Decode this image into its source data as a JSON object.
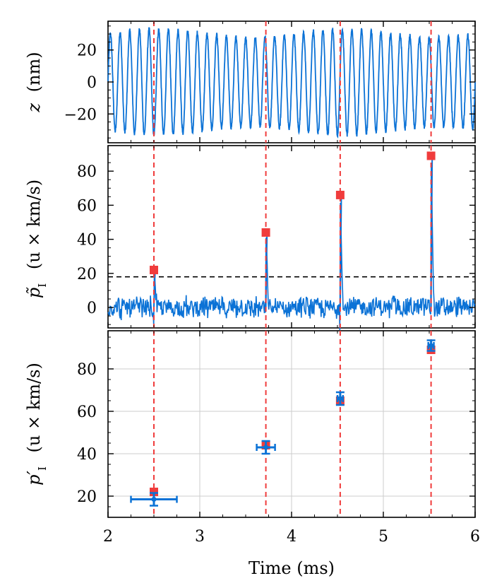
{
  "chart_data": [
    {
      "type": "line",
      "panel": "top",
      "ylabel": "z (nm)",
      "ylabel_parts": {
        "symbol": "z",
        "unit": "(nm)"
      },
      "xlim": [
        2,
        6
      ],
      "ylim": [
        -38,
        38
      ],
      "yticks": [
        -20,
        0,
        20
      ],
      "ytick_labels": [
        "−20",
        "0",
        "20"
      ],
      "series": [
        {
          "amplitude": 33,
          "frequency_khz": 9.5,
          "color": "#0b72d6"
        }
      ],
      "markers": {
        "times": [
          2.5,
          3.72,
          4.53,
          5.52
        ],
        "color": "#f03c3c",
        "style": "dashed"
      }
    },
    {
      "type": "line",
      "panel": "middle",
      "ylabel": "p̃_I (u × km/s)",
      "ylabel_parts": {
        "symbol": "p̃",
        "subscript": "I",
        "unit": "(u × km/s)"
      },
      "xlim": [
        2,
        6
      ],
      "ylim": [
        -12,
        95
      ],
      "yticks": [
        0,
        20,
        40,
        60,
        80
      ],
      "ytick_labels": [
        "0",
        "20",
        "40",
        "60",
        "80"
      ],
      "threshold": 18,
      "series": [
        {
          "noise_amplitude": 5,
          "color": "#0b72d6"
        }
      ],
      "peaks": [
        {
          "t": 2.5,
          "y": 22
        },
        {
          "t": 3.72,
          "y": 44
        },
        {
          "t": 4.53,
          "y": 66
        },
        {
          "t": 5.52,
          "y": 89
        }
      ],
      "peak_marker_color": "#f03c3c"
    },
    {
      "type": "scatter",
      "panel": "bottom",
      "xlabel": "Time (ms)",
      "ylabel": "p′_I (u × km/s)",
      "ylabel_parts": {
        "symbol": "p′",
        "subscript": "I",
        "unit": "(u × km/s)"
      },
      "xlim": [
        2,
        6
      ],
      "ylim": [
        10,
        98
      ],
      "xticks": [
        2,
        3,
        4,
        5,
        6
      ],
      "xtick_labels": [
        "2",
        "3",
        "4",
        "5",
        "6"
      ],
      "yticks": [
        20,
        40,
        60,
        80
      ],
      "ytick_labels": [
        "20",
        "40",
        "60",
        "80"
      ],
      "grid": true,
      "reference_points": [
        {
          "t": 2.5,
          "y": 22
        },
        {
          "t": 3.72,
          "y": 44
        },
        {
          "t": 4.53,
          "y": 65
        },
        {
          "t": 5.52,
          "y": 89
        }
      ],
      "measurements": [
        {
          "t": 2.5,
          "y": 18.5,
          "xerr": 0.25,
          "yerr": 3.0
        },
        {
          "t": 3.72,
          "y": 43.0,
          "xerr": 0.1,
          "yerr": 3.0
        },
        {
          "t": 4.53,
          "y": 66.0,
          "xerr": 0.03,
          "yerr": 3.0
        },
        {
          "t": 5.52,
          "y": 91.0,
          "xerr": 0.03,
          "yerr": 2.5
        }
      ],
      "series_color": "#0b72d6",
      "reference_color": "#f03c3c"
    }
  ]
}
